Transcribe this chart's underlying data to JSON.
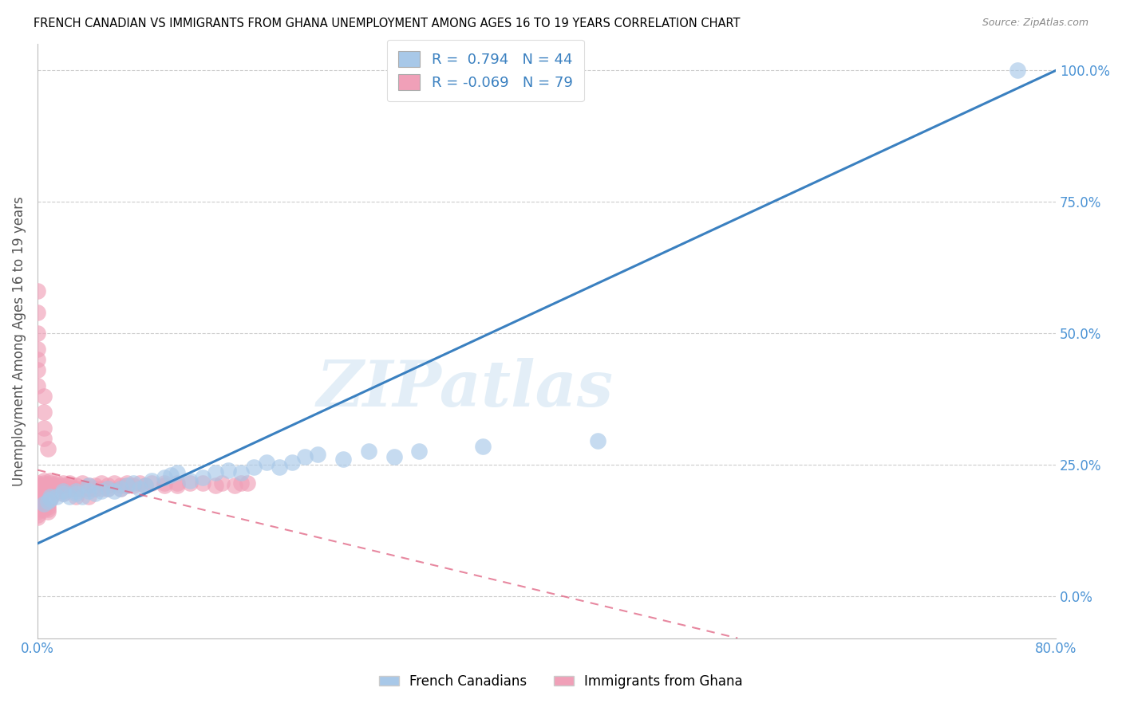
{
  "title": "FRENCH CANADIAN VS IMMIGRANTS FROM GHANA UNEMPLOYMENT AMONG AGES 16 TO 19 YEARS CORRELATION CHART",
  "source": "Source: ZipAtlas.com",
  "ylabel": "Unemployment Among Ages 16 to 19 years",
  "watermark": "ZIPatlas",
  "blue_scatter_color": "#a8c8e8",
  "pink_scatter_color": "#f0a0b8",
  "blue_line_color": "#3a80c0",
  "pink_line_color": "#e06080",
  "axis_color": "#4d94d5",
  "xmin": 0.0,
  "xmax": 0.8,
  "ymin": -0.08,
  "ymax": 1.05,
  "ytick_vals": [
    0.0,
    0.25,
    0.5,
    0.75,
    1.0
  ],
  "xtick_positions": [
    0.0,
    0.1,
    0.2,
    0.3,
    0.4,
    0.5,
    0.6,
    0.7,
    0.8
  ],
  "R_blue": 0.794,
  "N_blue": 44,
  "R_pink": -0.069,
  "N_pink": 79,
  "blue_line_x0": 0.0,
  "blue_line_y0": 0.1,
  "blue_line_x1": 0.8,
  "blue_line_y1": 1.0,
  "pink_line_x0": 0.0,
  "pink_line_y0": 0.24,
  "pink_line_x1": 0.55,
  "pink_line_y1": -0.08,
  "french_canadians_x": [
    0.005,
    0.008,
    0.01,
    0.01,
    0.015,
    0.02,
    0.02,
    0.025,
    0.03,
    0.03,
    0.035,
    0.04,
    0.04,
    0.045,
    0.05,
    0.055,
    0.06,
    0.065,
    0.07,
    0.075,
    0.08,
    0.085,
    0.09,
    0.1,
    0.105,
    0.11,
    0.12,
    0.13,
    0.14,
    0.15,
    0.16,
    0.17,
    0.18,
    0.19,
    0.2,
    0.21,
    0.22,
    0.24,
    0.26,
    0.28,
    0.3,
    0.35,
    0.44,
    0.77
  ],
  "french_canadians_y": [
    0.175,
    0.18,
    0.185,
    0.19,
    0.19,
    0.2,
    0.195,
    0.19,
    0.195,
    0.2,
    0.19,
    0.2,
    0.21,
    0.195,
    0.2,
    0.205,
    0.2,
    0.205,
    0.21,
    0.215,
    0.205,
    0.21,
    0.22,
    0.225,
    0.23,
    0.235,
    0.22,
    0.225,
    0.235,
    0.24,
    0.235,
    0.245,
    0.255,
    0.245,
    0.255,
    0.265,
    0.27,
    0.26,
    0.275,
    0.265,
    0.275,
    0.285,
    0.295,
    1.0
  ],
  "ghana_x": [
    0.0,
    0.0,
    0.0,
    0.0,
    0.0,
    0.0,
    0.0,
    0.0,
    0.0,
    0.0,
    0.0,
    0.0,
    0.005,
    0.005,
    0.005,
    0.005,
    0.005,
    0.005,
    0.005,
    0.005,
    0.008,
    0.008,
    0.008,
    0.008,
    0.01,
    0.01,
    0.01,
    0.01,
    0.01,
    0.01,
    0.01,
    0.012,
    0.012,
    0.012,
    0.015,
    0.015,
    0.015,
    0.015,
    0.02,
    0.02,
    0.02,
    0.02,
    0.025,
    0.025,
    0.025,
    0.03,
    0.03,
    0.03,
    0.035,
    0.035,
    0.04,
    0.04,
    0.04,
    0.045,
    0.045,
    0.05,
    0.05,
    0.055,
    0.055,
    0.06,
    0.065,
    0.065,
    0.07,
    0.07,
    0.075,
    0.08,
    0.085,
    0.09,
    0.1,
    0.1,
    0.11,
    0.11,
    0.12,
    0.13,
    0.14,
    0.145,
    0.155,
    0.16,
    0.165
  ],
  "ghana_y": [
    0.175,
    0.18,
    0.19,
    0.19,
    0.2,
    0.205,
    0.21,
    0.215,
    0.165,
    0.16,
    0.155,
    0.15,
    0.22,
    0.215,
    0.21,
    0.2,
    0.195,
    0.175,
    0.17,
    0.165,
    0.175,
    0.17,
    0.165,
    0.16,
    0.22,
    0.215,
    0.21,
    0.205,
    0.2,
    0.19,
    0.185,
    0.21,
    0.2,
    0.195,
    0.215,
    0.21,
    0.205,
    0.2,
    0.215,
    0.21,
    0.2,
    0.195,
    0.215,
    0.21,
    0.205,
    0.21,
    0.205,
    0.19,
    0.215,
    0.205,
    0.21,
    0.205,
    0.19,
    0.21,
    0.205,
    0.215,
    0.205,
    0.21,
    0.205,
    0.215,
    0.21,
    0.205,
    0.215,
    0.21,
    0.21,
    0.215,
    0.21,
    0.215,
    0.215,
    0.21,
    0.215,
    0.21,
    0.215,
    0.215,
    0.21,
    0.215,
    0.21,
    0.215,
    0.215
  ],
  "ghana_high_y": [
    0.58,
    0.54,
    0.5,
    0.47,
    0.45,
    0.43,
    0.4,
    0.38,
    0.35,
    0.32,
    0.3,
    0.28
  ],
  "ghana_high_x": [
    0.0,
    0.0,
    0.0,
    0.0,
    0.0,
    0.0,
    0.0,
    0.005,
    0.005,
    0.005,
    0.005,
    0.008
  ]
}
